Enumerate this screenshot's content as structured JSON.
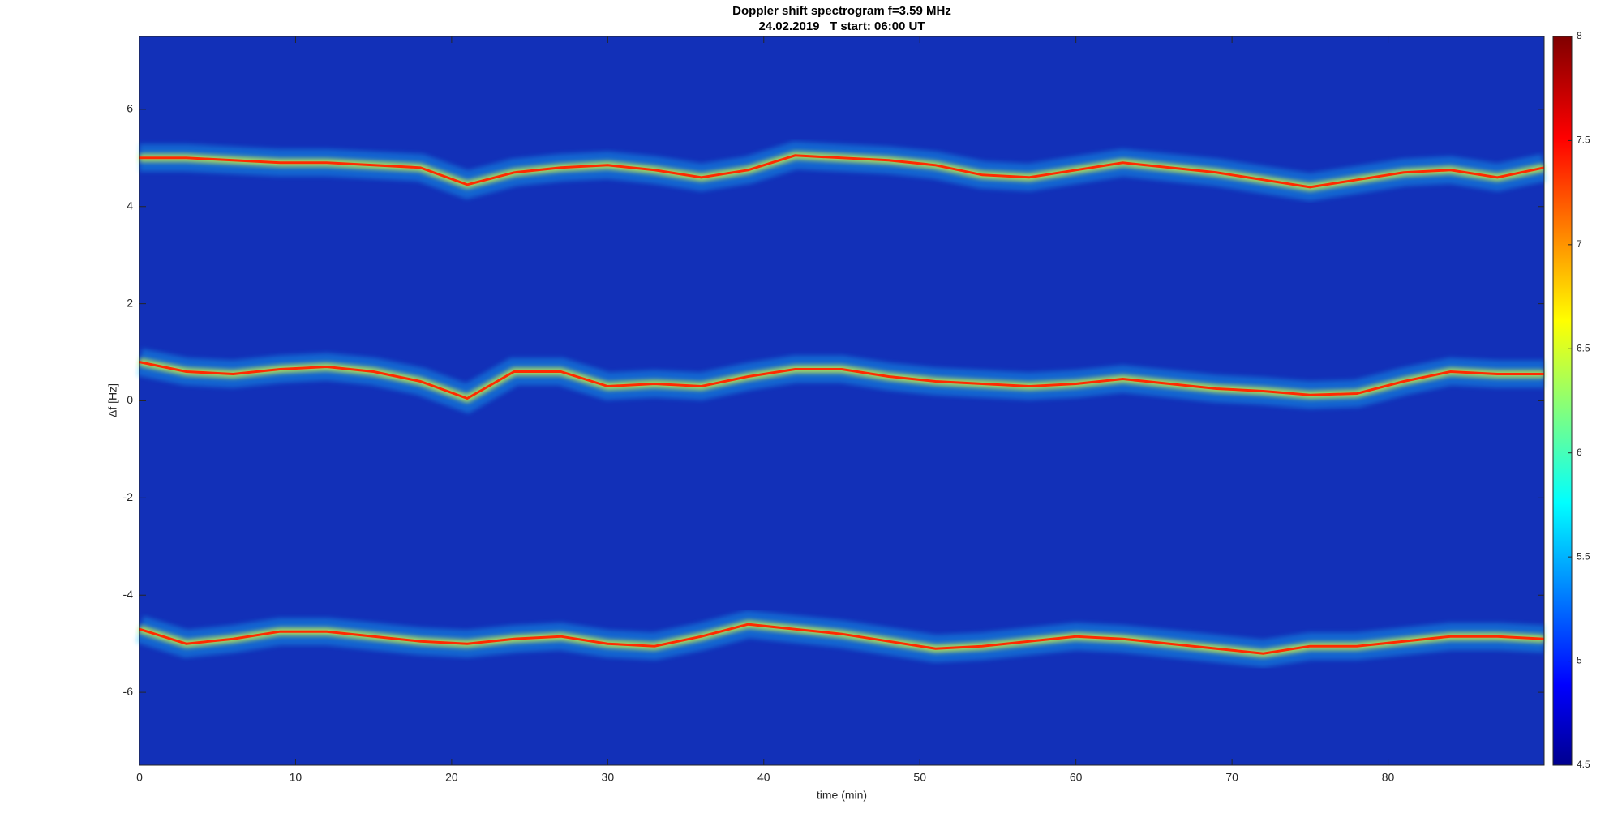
{
  "chart_data": {
    "type": "spectrogram",
    "title": "Doppler shift spectrogram f=3.59 MHz",
    "subtitle": "24.02.2019   T start: 06:00 UT",
    "x_label": "time (min)",
    "y_label": "Δf [Hz]",
    "xlim": [
      0,
      90
    ],
    "ylim": [
      -7.5,
      7.5
    ],
    "xticks": [
      0,
      10,
      20,
      30,
      40,
      50,
      60,
      70,
      80
    ],
    "yticks": [
      -6,
      -4,
      -2,
      0,
      2,
      4,
      6
    ],
    "background": "#1230b8",
    "colorbar": {
      "clim": [
        4.5,
        8
      ],
      "ticks": [
        4.5,
        5,
        5.5,
        6,
        6.5,
        7,
        7.5,
        8
      ]
    },
    "x": [
      0,
      3,
      6,
      9,
      12,
      15,
      18,
      21,
      24,
      27,
      30,
      33,
      36,
      39,
      42,
      45,
      48,
      51,
      54,
      57,
      60,
      63,
      66,
      69,
      72,
      75,
      78,
      81,
      84,
      87,
      90
    ],
    "series": [
      {
        "color": "#ff2a00",
        "values": [
          5.0,
          5.0,
          4.95,
          4.9,
          4.9,
          4.85,
          4.8,
          4.45,
          4.7,
          4.8,
          4.85,
          4.75,
          4.6,
          4.75,
          5.05,
          5.0,
          4.95,
          4.85,
          4.65,
          4.6,
          4.75,
          4.9,
          4.8,
          4.7,
          4.55,
          4.4,
          4.55,
          4.7,
          4.75,
          4.6,
          4.8
        ]
      },
      {
        "color": "#ff2a00",
        "values": [
          0.8,
          0.6,
          0.55,
          0.65,
          0.7,
          0.6,
          0.4,
          0.05,
          0.6,
          0.6,
          0.3,
          0.35,
          0.3,
          0.5,
          0.65,
          0.65,
          0.5,
          0.4,
          0.35,
          0.3,
          0.35,
          0.45,
          0.35,
          0.25,
          0.2,
          0.12,
          0.15,
          0.4,
          0.6,
          0.55,
          0.55
        ]
      },
      {
        "color": "#ff2a00",
        "values": [
          -4.7,
          -5.0,
          -4.9,
          -4.75,
          -4.75,
          -4.85,
          -4.95,
          -5.0,
          -4.9,
          -4.85,
          -5.0,
          -5.05,
          -4.85,
          -4.6,
          -4.7,
          -4.8,
          -4.95,
          -5.1,
          -5.05,
          -4.95,
          -4.85,
          -4.9,
          -5.0,
          -5.1,
          -5.2,
          -5.05,
          -5.05,
          -4.95,
          -4.85,
          -4.85,
          -4.9
        ]
      }
    ]
  }
}
